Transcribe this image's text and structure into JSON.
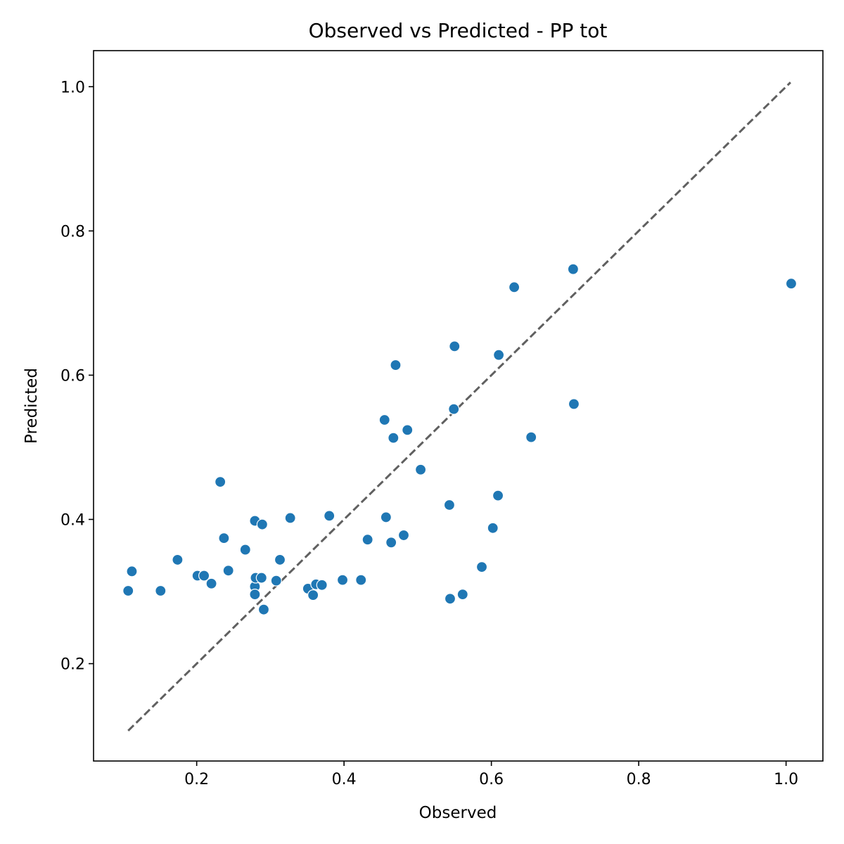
{
  "chart_data": {
    "type": "scatter",
    "title": "Observed vs Predicted - PP tot",
    "xlabel": "Observed",
    "ylabel": "Predicted",
    "xlim": [
      0.06,
      1.05
    ],
    "ylim": [
      0.065,
      1.05
    ],
    "xticks": [
      0.2,
      0.4,
      0.6,
      0.8,
      1.0
    ],
    "yticks": [
      0.2,
      0.4,
      0.6,
      0.8,
      1.0
    ],
    "xtick_labels": [
      "0.2",
      "0.4",
      "0.6",
      "0.8",
      "1.0"
    ],
    "ytick_labels": [
      "0.2",
      "0.4",
      "0.6",
      "0.8",
      "1.0"
    ],
    "grid": false,
    "marker_color": "#1f77b4",
    "reference_line": {
      "style": "dashed",
      "color": "#606060",
      "from": [
        0.107,
        0.107
      ],
      "to": [
        1.006,
        1.006
      ]
    },
    "points": [
      {
        "x": 0.107,
        "y": 0.301
      },
      {
        "x": 0.112,
        "y": 0.328
      },
      {
        "x": 0.151,
        "y": 0.301
      },
      {
        "x": 0.174,
        "y": 0.344
      },
      {
        "x": 0.201,
        "y": 0.322
      },
      {
        "x": 0.21,
        "y": 0.322
      },
      {
        "x": 0.22,
        "y": 0.311
      },
      {
        "x": 0.232,
        "y": 0.452
      },
      {
        "x": 0.237,
        "y": 0.374
      },
      {
        "x": 0.243,
        "y": 0.329
      },
      {
        "x": 0.266,
        "y": 0.358
      },
      {
        "x": 0.279,
        "y": 0.398
      },
      {
        "x": 0.279,
        "y": 0.307
      },
      {
        "x": 0.279,
        "y": 0.296
      },
      {
        "x": 0.28,
        "y": 0.319
      },
      {
        "x": 0.288,
        "y": 0.319
      },
      {
        "x": 0.289,
        "y": 0.393
      },
      {
        "x": 0.291,
        "y": 0.275
      },
      {
        "x": 0.308,
        "y": 0.315
      },
      {
        "x": 0.313,
        "y": 0.344
      },
      {
        "x": 0.327,
        "y": 0.402
      },
      {
        "x": 0.351,
        "y": 0.304
      },
      {
        "x": 0.358,
        "y": 0.295
      },
      {
        "x": 0.362,
        "y": 0.31
      },
      {
        "x": 0.37,
        "y": 0.309
      },
      {
        "x": 0.38,
        "y": 0.405
      },
      {
        "x": 0.398,
        "y": 0.316
      },
      {
        "x": 0.423,
        "y": 0.316
      },
      {
        "x": 0.432,
        "y": 0.372
      },
      {
        "x": 0.455,
        "y": 0.538
      },
      {
        "x": 0.457,
        "y": 0.403
      },
      {
        "x": 0.464,
        "y": 0.368
      },
      {
        "x": 0.467,
        "y": 0.513
      },
      {
        "x": 0.47,
        "y": 0.614
      },
      {
        "x": 0.481,
        "y": 0.378
      },
      {
        "x": 0.486,
        "y": 0.524
      },
      {
        "x": 0.504,
        "y": 0.469
      },
      {
        "x": 0.543,
        "y": 0.42
      },
      {
        "x": 0.544,
        "y": 0.29
      },
      {
        "x": 0.549,
        "y": 0.553
      },
      {
        "x": 0.55,
        "y": 0.64
      },
      {
        "x": 0.561,
        "y": 0.296
      },
      {
        "x": 0.587,
        "y": 0.334
      },
      {
        "x": 0.602,
        "y": 0.388
      },
      {
        "x": 0.609,
        "y": 0.433
      },
      {
        "x": 0.61,
        "y": 0.628
      },
      {
        "x": 0.631,
        "y": 0.722
      },
      {
        "x": 0.654,
        "y": 0.514
      },
      {
        "x": 0.711,
        "y": 0.747
      },
      {
        "x": 0.712,
        "y": 0.56
      },
      {
        "x": 1.007,
        "y": 0.727
      }
    ]
  }
}
